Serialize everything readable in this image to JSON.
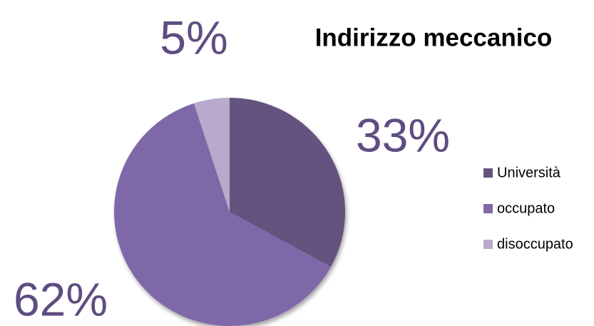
{
  "chart_data": {
    "type": "pie",
    "title": "Indirizzo meccanico",
    "categories": [
      "Università",
      "occupato",
      "disoccupato"
    ],
    "values": [
      33,
      62,
      5
    ],
    "value_labels": [
      "33%",
      "62%",
      "5%"
    ],
    "colors": [
      "#65527f",
      "#7f68a8",
      "#b8aacb"
    ],
    "legend": "right"
  }
}
